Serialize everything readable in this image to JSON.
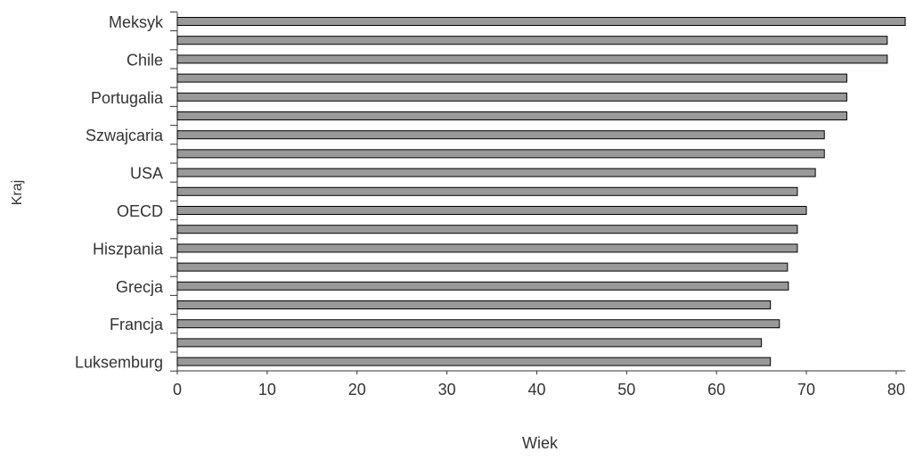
{
  "chart_data": {
    "type": "bar",
    "orientation": "horizontal",
    "xlabel": "Wiek",
    "ylabel": "Kraj",
    "xlim": [
      0,
      81
    ],
    "xticks": [
      0,
      10,
      20,
      30,
      40,
      50,
      60,
      70,
      80
    ],
    "grid": false,
    "legend": "none",
    "colors": {
      "bar_fill": "#999999",
      "bar_stroke": "#000000",
      "axis": "#333333"
    },
    "categories": [
      "Meksyk",
      "",
      "Chile",
      "",
      "Portugalia",
      "",
      "Szwajcaria",
      "",
      "USA",
      "",
      "OECD",
      "",
      "Hiszpania",
      "",
      "Grecja",
      "",
      "Francja",
      "",
      "Luksemburg"
    ],
    "values": [
      81,
      79,
      79,
      74.5,
      74.5,
      74.5,
      72,
      72,
      71,
      69,
      70,
      69,
      69,
      67.9,
      68,
      66,
      67,
      65,
      66
    ]
  }
}
